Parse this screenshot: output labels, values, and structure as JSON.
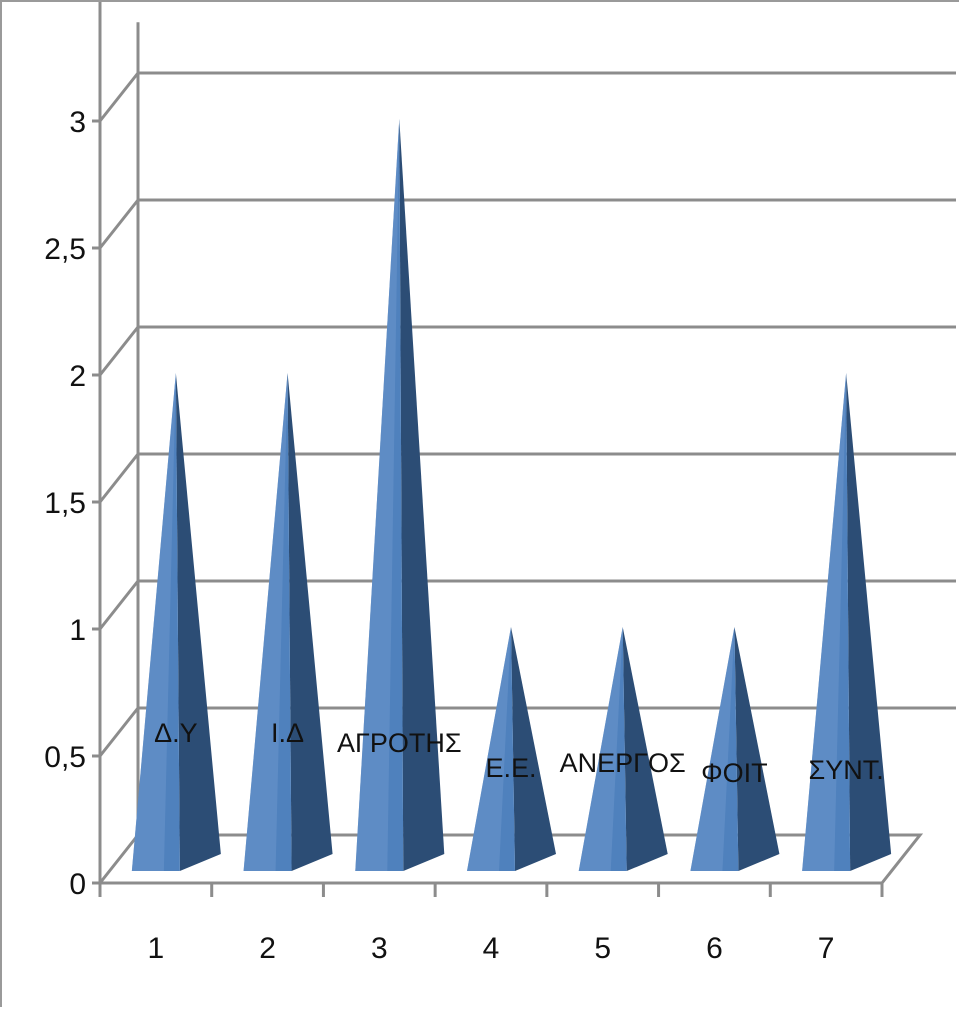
{
  "chart_data": {
    "type": "bar",
    "bar_shape": "pyramid-3d",
    "categories": [
      "1",
      "2",
      "3",
      "4",
      "5",
      "6",
      "7"
    ],
    "values": [
      2,
      2,
      3,
      1,
      1,
      1,
      2
    ],
    "data_labels": [
      "Δ.Υ",
      "Ι.Δ",
      "ΑΓΡΟΤΗΣ",
      "Ε.Ε.",
      "ΑΝΕΡΓΟΣ",
      "ΦΟΙΤ",
      "ΣΥΝΤ."
    ],
    "y_ticks": [
      "0",
      "0,5",
      "1",
      "1,5",
      "2",
      "2,5",
      "3"
    ],
    "y_tick_values": [
      0,
      0.5,
      1,
      1.5,
      2,
      2.5,
      3
    ],
    "ylim": [
      0,
      3
    ],
    "title": "",
    "xlabel": "",
    "ylabel": "",
    "grid": true,
    "legend": "none",
    "colors": {
      "bar_front": "#4f81bd",
      "bar_side": "#2c4d75",
      "grid": "#8c8c8c",
      "axis": "#8c8c8c"
    }
  }
}
